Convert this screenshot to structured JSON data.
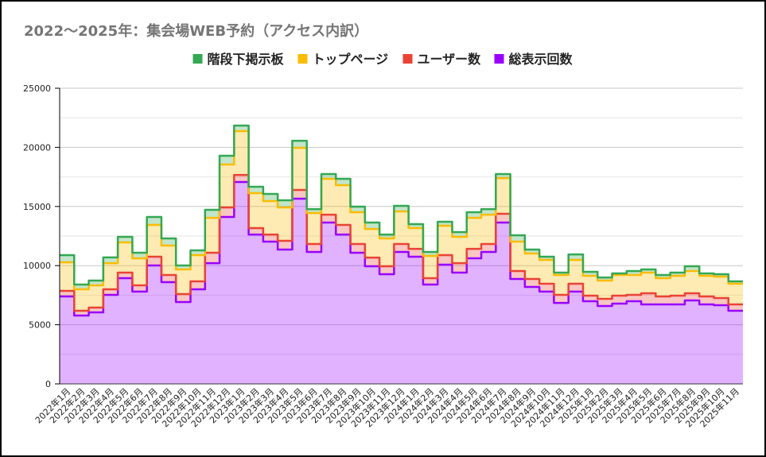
{
  "chart_data": {
    "type": "area",
    "stacked": true,
    "stepped": true,
    "title": "2022〜2025年：集会場WEB予約（アクセス内訳）",
    "xlabel": "",
    "ylabel": "",
    "ylim": [
      0,
      25000
    ],
    "yticks": [
      0,
      5000,
      10000,
      15000,
      20000,
      25000
    ],
    "grid": true,
    "legend_position": "top",
    "categories": [
      "2022年1月",
      "2022年2月",
      "2022年3月",
      "2022年4月",
      "2022年5月",
      "2022年6月",
      "2022年7月",
      "2022年8月",
      "2022年9月",
      "2022年10月",
      "2022年11月",
      "2022年12月",
      "2023年1月",
      "2023年2月",
      "2023年3月",
      "2023年4月",
      "2023年5月",
      "2023年6月",
      "2023年7月",
      "2023年8月",
      "2023年9月",
      "2023年10月",
      "2023年11月",
      "2023年12月",
      "2024年1月",
      "2024年2月",
      "2024年3月",
      "2024年4月",
      "2024年5月",
      "2024年6月",
      "2024年7月",
      "2024年8月",
      "2024年9月",
      "2024年10月",
      "2024年11月",
      "2024年12月",
      "2025年1月",
      "2025年2月",
      "2025年3月",
      "2025年4月",
      "2025年5月",
      "2025年6月",
      "2025年7月",
      "2025年8月",
      "2025年9月",
      "2025年10月",
      "2025年11月"
    ],
    "legend": [
      "階段下掲示板",
      "トップページ",
      "ユーザー数",
      "総表示回数"
    ],
    "series": [
      {
        "name": "総表示回数",
        "color": "#9900ff",
        "values": [
          7390,
          5780,
          6050,
          7530,
          8940,
          7800,
          10010,
          8600,
          6920,
          8000,
          10210,
          14110,
          17070,
          12630,
          12030,
          11360,
          15660,
          11160,
          13640,
          12630,
          11090,
          9950,
          9270,
          11160,
          10750,
          8400,
          10080,
          9410,
          10620,
          11160,
          13640,
          8870,
          8200,
          7800,
          6850,
          7800,
          6990,
          6590,
          6790,
          6990,
          6720,
          6720,
          6720,
          7060,
          6720,
          6650,
          6180
        ]
      },
      {
        "name": "ユーザー数",
        "color": "#ea4335",
        "values": [
          470,
          400,
          400,
          470,
          470,
          530,
          740,
          610,
          670,
          670,
          880,
          810,
          600,
          540,
          600,
          740,
          740,
          670,
          670,
          810,
          740,
          730,
          680,
          670,
          670,
          540,
          810,
          800,
          800,
          670,
          740,
          670,
          670,
          670,
          680,
          670,
          470,
          600,
          670,
          540,
          940,
          670,
          740,
          600,
          670,
          610,
          540
        ]
      },
      {
        "name": "トップページ",
        "color": "#fbbc04",
        "values": [
          2420,
          1820,
          1880,
          2210,
          2550,
          2290,
          2690,
          2480,
          2090,
          2220,
          2950,
          3630,
          3700,
          2960,
          2830,
          2820,
          3560,
          2620,
          3030,
          3360,
          2690,
          2420,
          2350,
          2750,
          1750,
          1880,
          2480,
          2220,
          2620,
          2480,
          3020,
          2490,
          2150,
          2010,
          1680,
          2010,
          1680,
          1550,
          1750,
          1680,
          1750,
          1550,
          1680,
          1880,
          1750,
          1810,
          1750
        ]
      },
      {
        "name": "階段下掲示板",
        "color": "#34a853",
        "values": [
          610,
          400,
          410,
          480,
          470,
          470,
          670,
          610,
          330,
          400,
          680,
          740,
          470,
          540,
          600,
          600,
          600,
          330,
          400,
          540,
          470,
          540,
          330,
          470,
          340,
          340,
          340,
          410,
          480,
          470,
          340,
          540,
          340,
          270,
          200,
          470,
          340,
          260,
          130,
          330,
          270,
          270,
          270,
          410,
          200,
          200,
          200
        ]
      }
    ]
  }
}
